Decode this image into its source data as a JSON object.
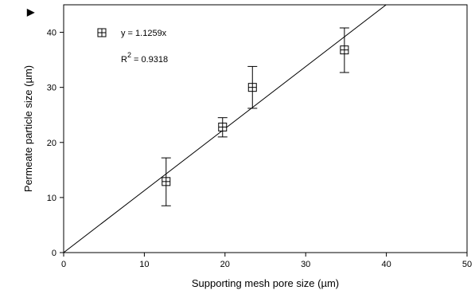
{
  "corner_label": "▶",
  "chart_data": {
    "type": "scatter",
    "xlabel": "Supporting mesh pore size (µm)",
    "ylabel": "Permeate particle size (µm)",
    "xlim": [
      0,
      50
    ],
    "ylim": [
      0,
      45
    ],
    "x_ticks": [
      0,
      10,
      20,
      30,
      40,
      50
    ],
    "y_ticks": [
      0,
      10,
      20,
      30,
      40
    ],
    "grid": false,
    "points": [
      {
        "x": 12.7,
        "y": 12.9,
        "err_low": 8.5,
        "err_high": 17.2
      },
      {
        "x": 19.7,
        "y": 22.8,
        "err_low": 21.0,
        "err_high": 24.5
      },
      {
        "x": 23.4,
        "y": 30.0,
        "err_low": 26.2,
        "err_high": 33.8
      },
      {
        "x": 34.8,
        "y": 36.8,
        "err_low": 32.7,
        "err_high": 40.8
      }
    ],
    "fit_line": {
      "slope": 1.1259,
      "intercept": 0
    },
    "legend_position": "top-left",
    "annotations": {
      "equation": "y = 1.1259x",
      "r2_prefix": "R",
      "r2_sup": "2",
      "r2_suffix": " = 0.9318"
    }
  }
}
